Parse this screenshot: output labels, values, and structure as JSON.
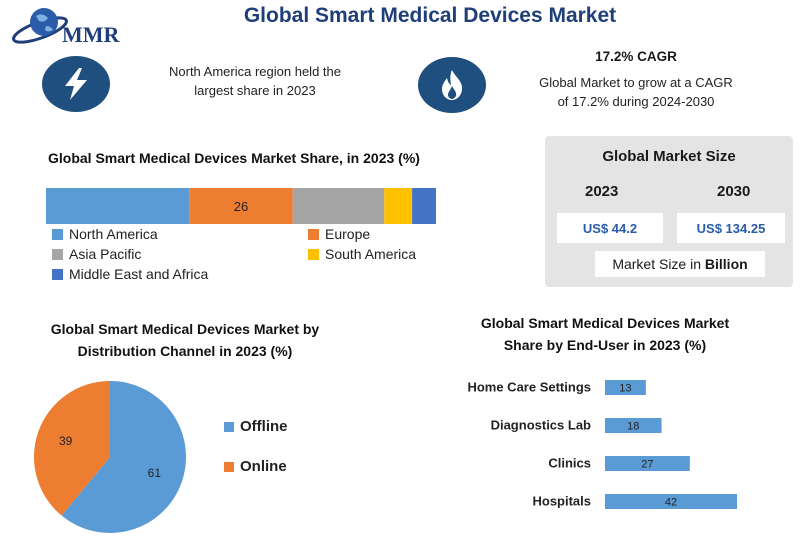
{
  "header": {
    "title": "Global Smart Medical Devices Market",
    "logo_text": "MMR"
  },
  "highlights": {
    "region_note_line1": "North America region held the",
    "region_note_line2": "largest share in 2023",
    "cagr_heading": "17.2% CAGR",
    "cagr_line1": "Global Market to grow at a CAGR",
    "cagr_line2": "of 17.2% during 2024-2030",
    "icons": [
      "lightning-icon",
      "flame-icon"
    ]
  },
  "market_size": {
    "title": "Global Market Size",
    "year_start": "2023",
    "year_end": "2030",
    "value_start": "US$ 44.2",
    "value_end": "US$ 134.25",
    "unit_prefix": "Market Size in ",
    "unit_bold": "Billion"
  },
  "colors": {
    "blue": "#5b9bd5",
    "orange": "#ed7d31",
    "gray": "#a5a5a5",
    "yellow": "#ffc000",
    "dark_blue": "#4472c4",
    "navy": "#1f4f7f"
  },
  "chart_data": [
    {
      "type": "bar",
      "orientation": "stacked-horizontal",
      "title": "Global Smart Medical Devices Market Share, in 2023 (%)",
      "series": [
        {
          "name": "North America",
          "value": 36,
          "color": "#5b9bd5",
          "label": ""
        },
        {
          "name": "Europe",
          "value": 26,
          "color": "#ed7d31",
          "label": "26"
        },
        {
          "name": "Asia Pacific",
          "value": 23,
          "color": "#a5a5a5",
          "label": ""
        },
        {
          "name": "South America",
          "value": 7,
          "color": "#ffc000",
          "label": ""
        },
        {
          "name": "Middle East and Africa",
          "value": 6,
          "color": "#4472c4",
          "label": ""
        }
      ],
      "legend": "bottom"
    },
    {
      "type": "pie",
      "title_line1": "Global Smart Medical Devices Market by",
      "title_line2": "Distribution Channel in 2023 (%)",
      "slices": [
        {
          "name": "Offline",
          "value": 61,
          "color": "#5b9bd5"
        },
        {
          "name": "Online",
          "value": 39,
          "color": "#ed7d31"
        }
      ],
      "legend": "right"
    },
    {
      "type": "bar",
      "orientation": "horizontal",
      "title_line1": "Global Smart Medical Devices Market",
      "title_line2": "Share by End-User in 2023 (%)",
      "categories": [
        "Home Care Settings",
        "Diagnostics Lab",
        "Clinics",
        "Hospitals"
      ],
      "values": [
        13,
        18,
        27,
        42
      ],
      "color": "#5b9bd5"
    }
  ]
}
